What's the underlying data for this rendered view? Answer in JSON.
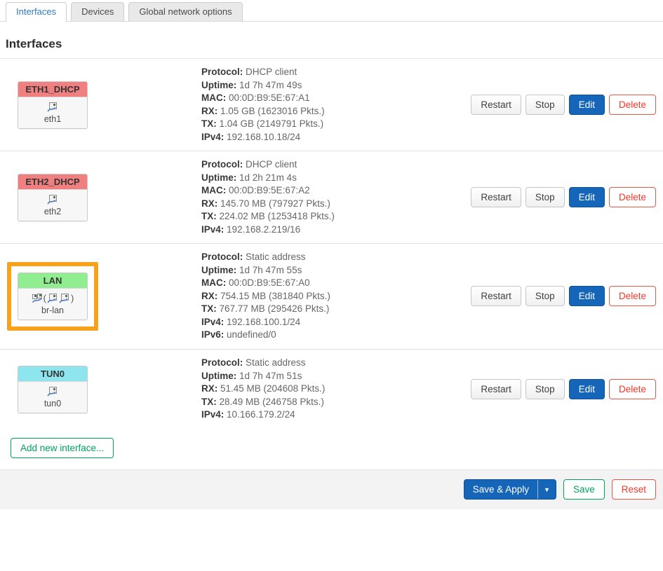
{
  "tabs": [
    {
      "label": "Interfaces",
      "active": true
    },
    {
      "label": "Devices",
      "active": false
    },
    {
      "label": "Global network options",
      "active": false
    }
  ],
  "page_title": "Interfaces",
  "actions": {
    "restart": "Restart",
    "stop": "Stop",
    "edit": "Edit",
    "delete": "Delete"
  },
  "interfaces": [
    {
      "name": "ETH1_DHCP",
      "header_color": "#f08080",
      "device": "eth1",
      "icons": [
        "ethernet-icon"
      ],
      "highlighted": false,
      "details": [
        {
          "label": "Protocol:",
          "value": "DHCP client"
        },
        {
          "label": "Uptime:",
          "value": "1d 7h 47m 49s"
        },
        {
          "label": "MAC:",
          "value": "00:0D:B9:5E:67:A1"
        },
        {
          "label": "RX:",
          "value": "1.05 GB (1623016 Pkts.)"
        },
        {
          "label": "TX:",
          "value": "1.04 GB (2149791 Pkts.)"
        },
        {
          "label": "IPv4:",
          "value": "192.168.10.18/24"
        }
      ]
    },
    {
      "name": "ETH2_DHCP",
      "header_color": "#f08080",
      "device": "eth2",
      "icons": [
        "ethernet-icon"
      ],
      "highlighted": false,
      "details": [
        {
          "label": "Protocol:",
          "value": "DHCP client"
        },
        {
          "label": "Uptime:",
          "value": "1d 2h 21m 4s"
        },
        {
          "label": "MAC:",
          "value": "00:0D:B9:5E:67:A2"
        },
        {
          "label": "RX:",
          "value": "145.70 MB (797927 Pkts.)"
        },
        {
          "label": "TX:",
          "value": "224.02 MB (1253418 Pkts.)"
        },
        {
          "label": "IPv4:",
          "value": "192.168.2.219/16"
        }
      ]
    },
    {
      "name": "LAN",
      "header_color": "#90ee90",
      "device": "br-lan",
      "icons": [
        "bridge-icon",
        "paren-open",
        "ethernet-icon",
        "ethernet-icon",
        "paren-close"
      ],
      "highlighted": true,
      "highlight_color": "#f6a21e",
      "details": [
        {
          "label": "Protocol:",
          "value": "Static address"
        },
        {
          "label": "Uptime:",
          "value": "1d 7h 47m 55s"
        },
        {
          "label": "MAC:",
          "value": "00:0D:B9:5E:67:A0"
        },
        {
          "label": "RX:",
          "value": "754.15 MB (381840 Pkts.)"
        },
        {
          "label": "TX:",
          "value": "767.77 MB (295426 Pkts.)"
        },
        {
          "label": "IPv4:",
          "value": "192.168.100.1/24"
        },
        {
          "label": "IPv6:",
          "value": "undefined/0"
        }
      ]
    },
    {
      "name": "TUN0",
      "header_color": "#8ee5ee",
      "device": "tun0",
      "icons": [
        "ethernet-icon"
      ],
      "highlighted": false,
      "details": [
        {
          "label": "Protocol:",
          "value": "Static address"
        },
        {
          "label": "Uptime:",
          "value": "1d 7h 47m 51s"
        },
        {
          "label": "RX:",
          "value": "51.45 MB (204608 Pkts.)"
        },
        {
          "label": "TX:",
          "value": "28.49 MB (246758 Pkts.)"
        },
        {
          "label": "IPv4:",
          "value": "10.166.179.2/24"
        }
      ]
    }
  ],
  "add_button_label": "Add new interface...",
  "footer": {
    "save_apply": "Save & Apply",
    "dropdown_caret": "▼",
    "save": "Save",
    "reset": "Reset"
  },
  "colors": {
    "accent_blue": "#1565b8",
    "danger_red": "#ed392b",
    "success_green": "#00a25c",
    "highlight_orange": "#f6a21e",
    "header_salmon": "#f08080",
    "header_green": "#90ee90",
    "header_cyan": "#8ee5ee"
  }
}
